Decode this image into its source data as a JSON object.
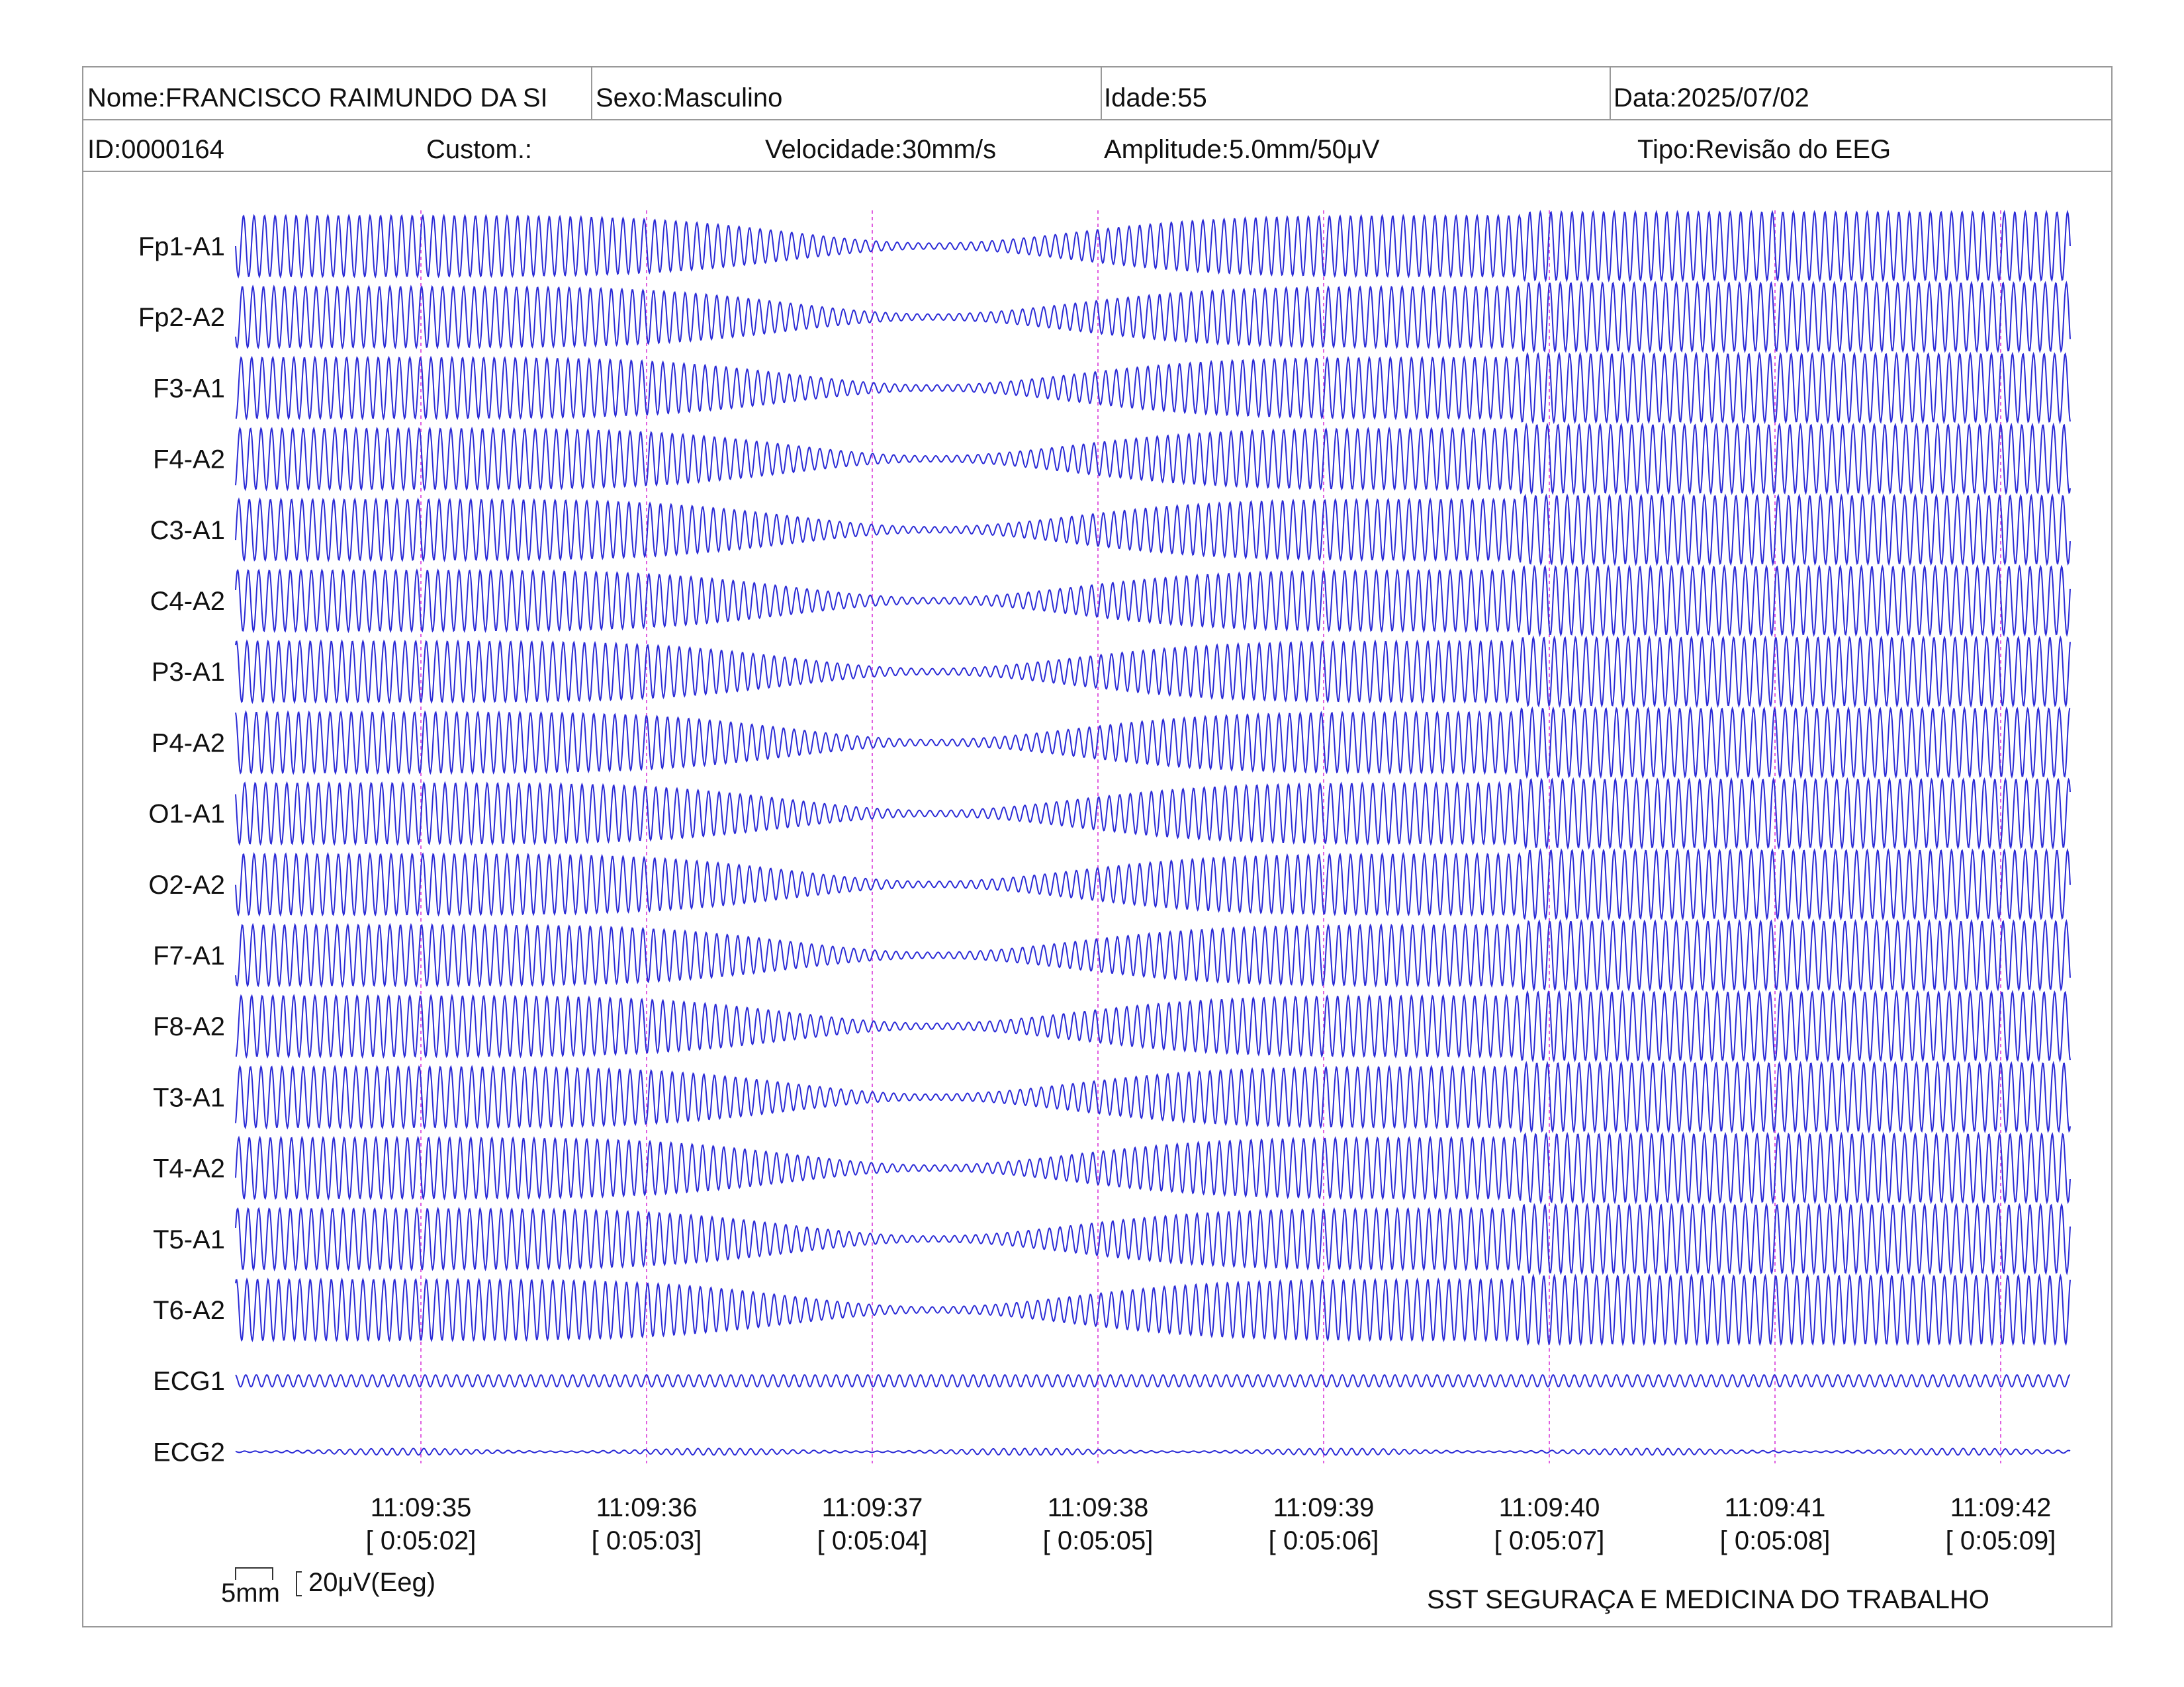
{
  "header": {
    "name": "Nome:FRANCISCO RAIMUNDO DA SI",
    "sex": "Sexo:Masculino",
    "age": "Idade:55",
    "date": "Data:2025/07/02",
    "id": "ID:0000164",
    "custom": "Custom.:",
    "speed": "Velocidade:30mm/s",
    "amplitude": "Amplitude:5.0mm/50μV",
    "type": "Tipo:Revisão do EEG"
  },
  "colors": {
    "trace": "#2b2bd6",
    "marker": "#e060e0",
    "border": "#999999"
  },
  "chart_data": {
    "type": "line",
    "channels": [
      "Fp1-A1",
      "Fp2-A2",
      "F3-A1",
      "F4-A2",
      "C3-A1",
      "C4-A2",
      "P3-A1",
      "P4-A2",
      "O1-A1",
      "O2-A2",
      "F7-A1",
      "F8-A2",
      "T3-A1",
      "T4-A2",
      "T5-A1",
      "T6-A2",
      "ECG1",
      "ECG2"
    ],
    "time_ticks": [
      "11:09:35",
      "11:09:36",
      "11:09:37",
      "11:09:38",
      "11:09:39",
      "11:09:40",
      "11:09:41",
      "11:09:42"
    ],
    "elapsed_ticks": [
      "[ 0:05:02]",
      "[ 0:05:03]",
      "[ 0:05:04]",
      "[ 0:05:05]",
      "[ 0:05:06]",
      "[ 0:05:07]",
      "[ 0:05:08]",
      "[ 0:05:09]"
    ],
    "scale": {
      "time": "5mm",
      "amplitude": "20μV(Eeg)"
    },
    "grid": false
  },
  "footer": {
    "company": "SST SEGURAÇA E MEDICINA DO TRABALHO"
  }
}
